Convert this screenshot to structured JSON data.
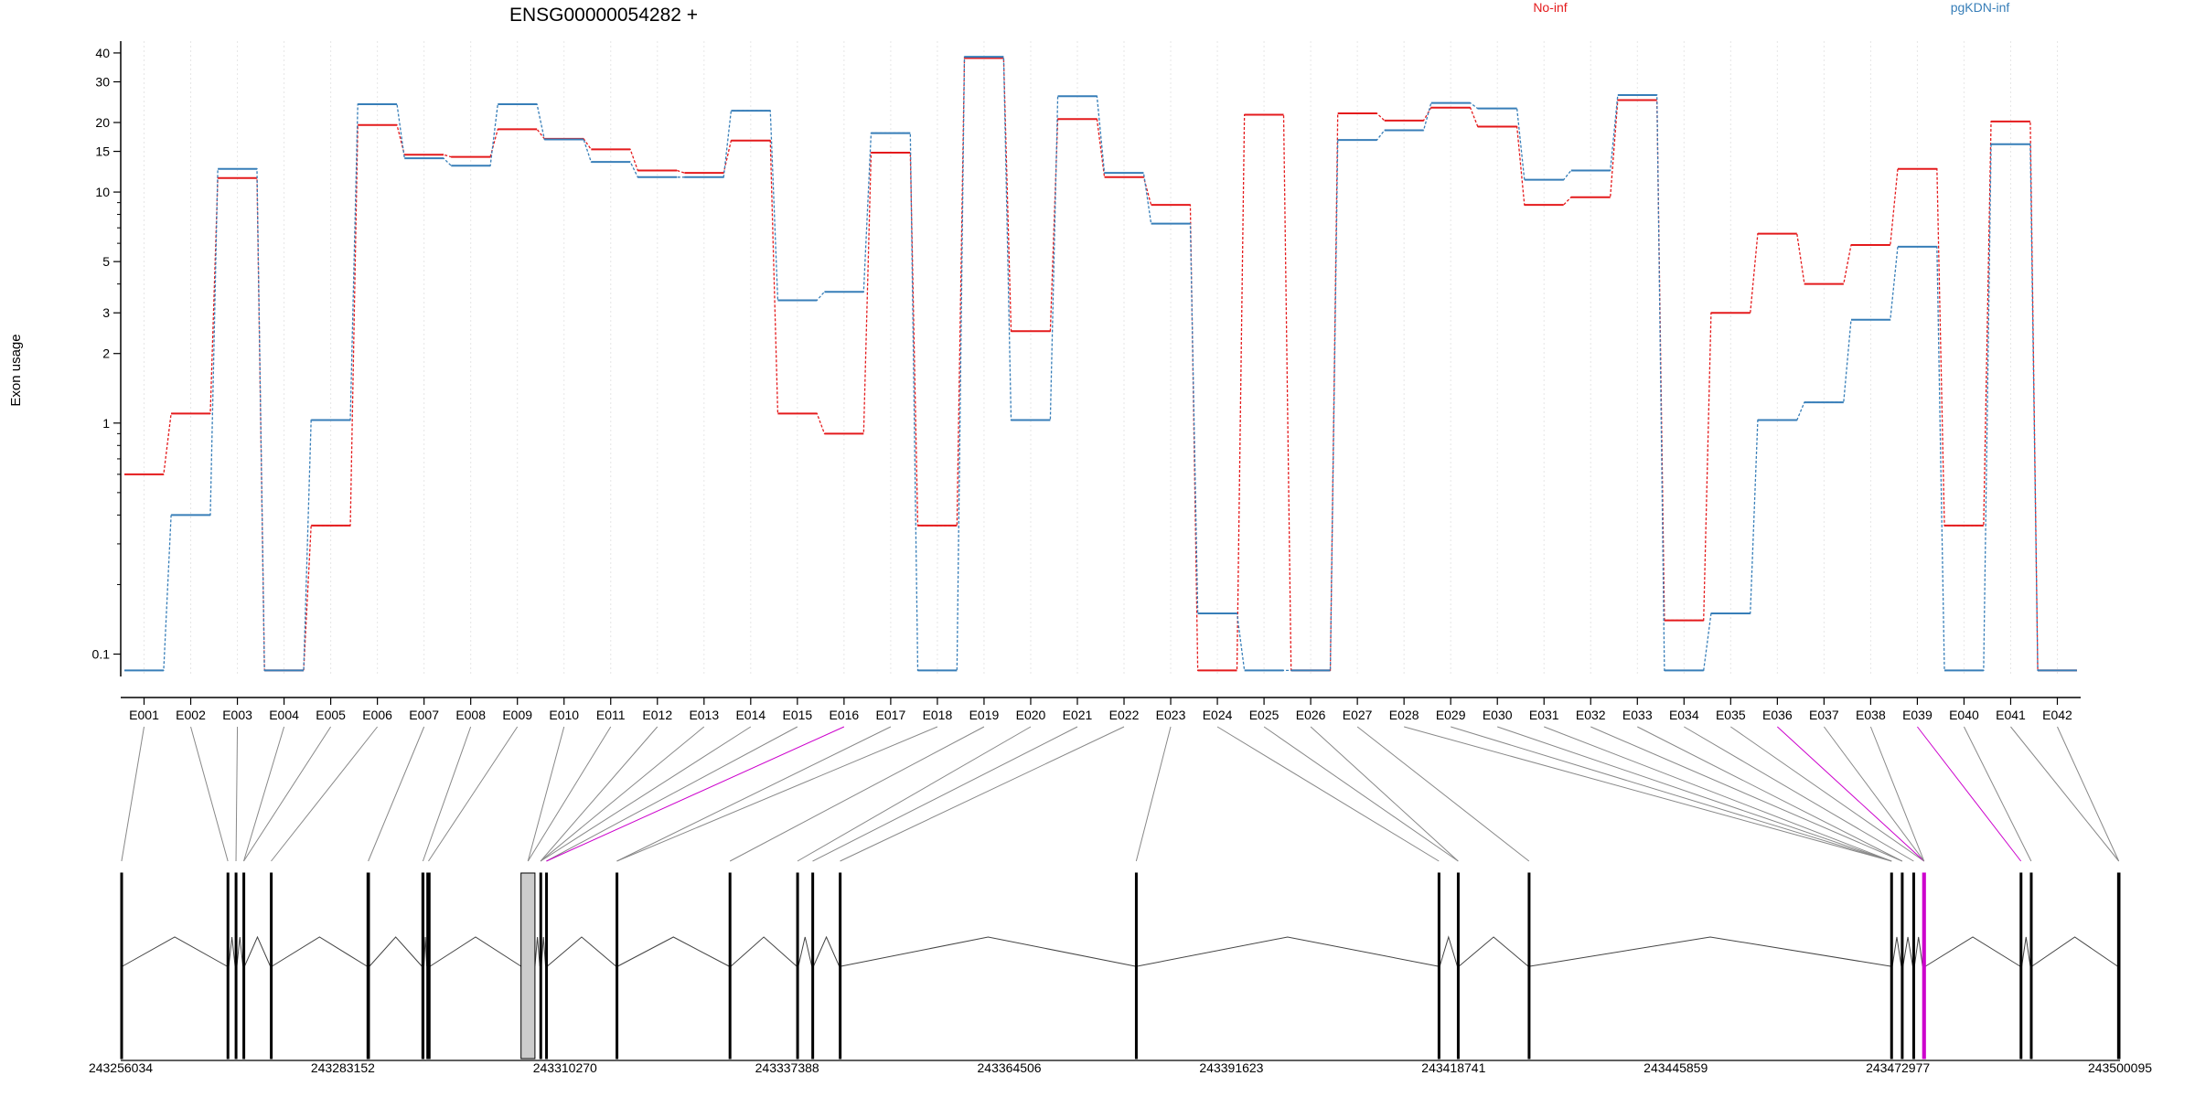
{
  "chart_data": {
    "type": "line",
    "title": "ENSG00000054282 +",
    "ylabel": "Exon usage",
    "xlabel": "",
    "y_scale": "log",
    "ylim": [
      0.08,
      45
    ],
    "y_ticks": [
      0.1,
      1,
      2,
      3,
      5,
      10,
      15,
      20,
      30,
      40
    ],
    "y_tick_labels": [
      "0.1",
      "1",
      "2",
      "3",
      "5",
      "10",
      "15",
      "20",
      "30",
      "40"
    ],
    "grid": "vertical dotted at each exon",
    "legend_placement": "top-right",
    "categories": [
      "E001",
      "E002",
      "E003",
      "E004",
      "E005",
      "E006",
      "E007",
      "E008",
      "E009",
      "E010",
      "E011",
      "E012",
      "E013",
      "E014",
      "E015",
      "E016",
      "E017",
      "E018",
      "E019",
      "E020",
      "E021",
      "E022",
      "E023",
      "E024",
      "E025",
      "E026",
      "E027",
      "E028",
      "E029",
      "E030",
      "E031",
      "E032",
      "E033",
      "E034",
      "E035",
      "E036",
      "E037",
      "E038",
      "E039",
      "E040",
      "E041",
      "E042"
    ],
    "series": [
      {
        "name": "No-inf",
        "color": "#e41a1c",
        "values": [
          0.6,
          1.1,
          11.5,
          0.085,
          0.36,
          19.5,
          14.5,
          14.2,
          18.7,
          17,
          15.3,
          12.4,
          12.1,
          16.7,
          1.1,
          0.9,
          14.8,
          0.36,
          38,
          2.5,
          20.7,
          11.6,
          8.8,
          0.085,
          21.6,
          0.085,
          21.9,
          20.4,
          23.2,
          19.2,
          8.8,
          9.5,
          25,
          0.14,
          3,
          6.6,
          4,
          5.9,
          12.6,
          0.36,
          20.2,
          0.085
        ]
      },
      {
        "name": "pgKDN-inf",
        "color": "#377eb8",
        "values": [
          0.085,
          0.4,
          12.6,
          0.085,
          1.03,
          24,
          14,
          13,
          24,
          16.9,
          13.5,
          11.6,
          11.6,
          22.5,
          3.4,
          3.7,
          18,
          0.085,
          38.5,
          1.03,
          26,
          12.1,
          7.3,
          0.15,
          0.085,
          0.085,
          16.8,
          18.5,
          24.3,
          23,
          11.3,
          12.4,
          26.3,
          0.085,
          0.15,
          1.03,
          1.23,
          2.8,
          5.8,
          0.085,
          16.1,
          0.085
        ]
      }
    ],
    "genomic_axis": {
      "tick_labels": [
        "243256034",
        "243283152",
        "243310270",
        "243337388",
        "243364506",
        "243391623",
        "243418741",
        "243445859",
        "243472977",
        "243500095"
      ],
      "range": [
        243256034,
        243500095
      ]
    },
    "exon_blocks": [
      {
        "start": 243256034,
        "end": 243256240
      },
      {
        "start": 243269010,
        "end": 243269220
      },
      {
        "start": 243270000,
        "end": 243270210
      },
      {
        "start": 243270950,
        "end": 243271150
      },
      {
        "start": 243274300,
        "end": 243274500
      },
      {
        "start": 243286100,
        "end": 243286400
      },
      {
        "start": 243292800,
        "end": 243293050
      },
      {
        "start": 243293400,
        "end": 243293800
      },
      {
        "start": 243304900,
        "end": 243306600
      },
      {
        "start": 243307200,
        "end": 243307380
      },
      {
        "start": 243307900,
        "end": 243308100
      },
      {
        "start": 243316500,
        "end": 243316700
      },
      {
        "start": 243330300,
        "end": 243330520
      },
      {
        "start": 243338550,
        "end": 243338750
      },
      {
        "start": 243340400,
        "end": 243340600
      },
      {
        "start": 243343750,
        "end": 243343950
      },
      {
        "start": 243379900,
        "end": 243380100
      },
      {
        "start": 243416850,
        "end": 243417050
      },
      {
        "start": 243419200,
        "end": 243419400
      },
      {
        "start": 243427850,
        "end": 243428050
      },
      {
        "start": 243472100,
        "end": 243472300
      },
      {
        "start": 243473400,
        "end": 243473600
      },
      {
        "start": 243474800,
        "end": 243475000
      },
      {
        "start": 243476000,
        "end": 243476350
      },
      {
        "start": 243487900,
        "end": 243488100
      },
      {
        "start": 243489150,
        "end": 243489350
      },
      {
        "start": 243499800,
        "end": 243500095
      }
    ],
    "exon_block_map": [
      0,
      1,
      2,
      3,
      3,
      4,
      5,
      6,
      7,
      8,
      8,
      9,
      9,
      9,
      10,
      10,
      11,
      11,
      12,
      13,
      14,
      15,
      16,
      17,
      18,
      18,
      19,
      20,
      20,
      20,
      20,
      21,
      21,
      22,
      23,
      23,
      23,
      23,
      24,
      25,
      26,
      26
    ],
    "highlighted_exons": [
      "E016",
      "E036",
      "E039"
    ],
    "highlight_color": "#cc00cc"
  }
}
